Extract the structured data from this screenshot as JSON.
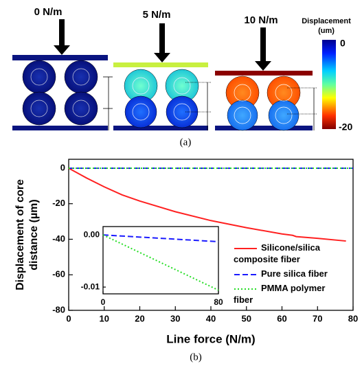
{
  "panel_a": {
    "loads": [
      "0 N/m",
      "5 N/m",
      "10 N/m"
    ],
    "colorbar": {
      "title": "Displacement (um)",
      "max_label": "0",
      "min_label": "-20"
    },
    "caption": "(a)"
  },
  "caption_b": "(b)",
  "chart_data": [
    {
      "type": "line",
      "xlabel": "Line force (N/m)",
      "ylabel": "Displacement of core distance (µm)",
      "xlim": [
        0,
        80
      ],
      "ylim": [
        -80,
        5
      ],
      "xticks": [
        0,
        10,
        20,
        30,
        40,
        50,
        60,
        70,
        80
      ],
      "yticks": [
        0,
        -20,
        -40,
        -60,
        -80
      ],
      "legend": "lower right",
      "series": [
        {
          "name": "Silicone/silica composite fiber",
          "color": "#ff2020",
          "style": "solid",
          "x": [
            0,
            5,
            10,
            15,
            20,
            30,
            40,
            50,
            60,
            63,
            64,
            70,
            78
          ],
          "values": [
            0,
            -5.5,
            -10.5,
            -15,
            -18.5,
            -24.5,
            -29.5,
            -33.5,
            -37,
            -37.8,
            -38.5,
            -39.5,
            -41
          ]
        },
        {
          "name": "Pure silica fiber",
          "color": "#1a1aff",
          "style": "dashed",
          "x": [
            0,
            80
          ],
          "values": [
            0,
            -0.0013
          ]
        },
        {
          "name": "PMMA polymer fiber",
          "color": "#22dd22",
          "style": "dotted",
          "x": [
            0,
            80
          ],
          "values": [
            0,
            -0.0106
          ]
        }
      ]
    },
    {
      "type": "line",
      "xlim": [
        0,
        80
      ],
      "ylim": [
        -0.0113,
        0.0016
      ],
      "xticks": [
        0,
        80
      ],
      "yticks": [
        {
          "value": 0,
          "label": "0.00"
        },
        -0.01
      ],
      "series": [
        {
          "color": "#1a1aff",
          "style": "dashed",
          "x": [
            0,
            80
          ],
          "values": [
            0,
            -0.0013
          ]
        },
        {
          "color": "#22dd22",
          "style": "dotted",
          "x": [
            0,
            80
          ],
          "values": [
            0,
            -0.0106
          ]
        }
      ]
    }
  ]
}
